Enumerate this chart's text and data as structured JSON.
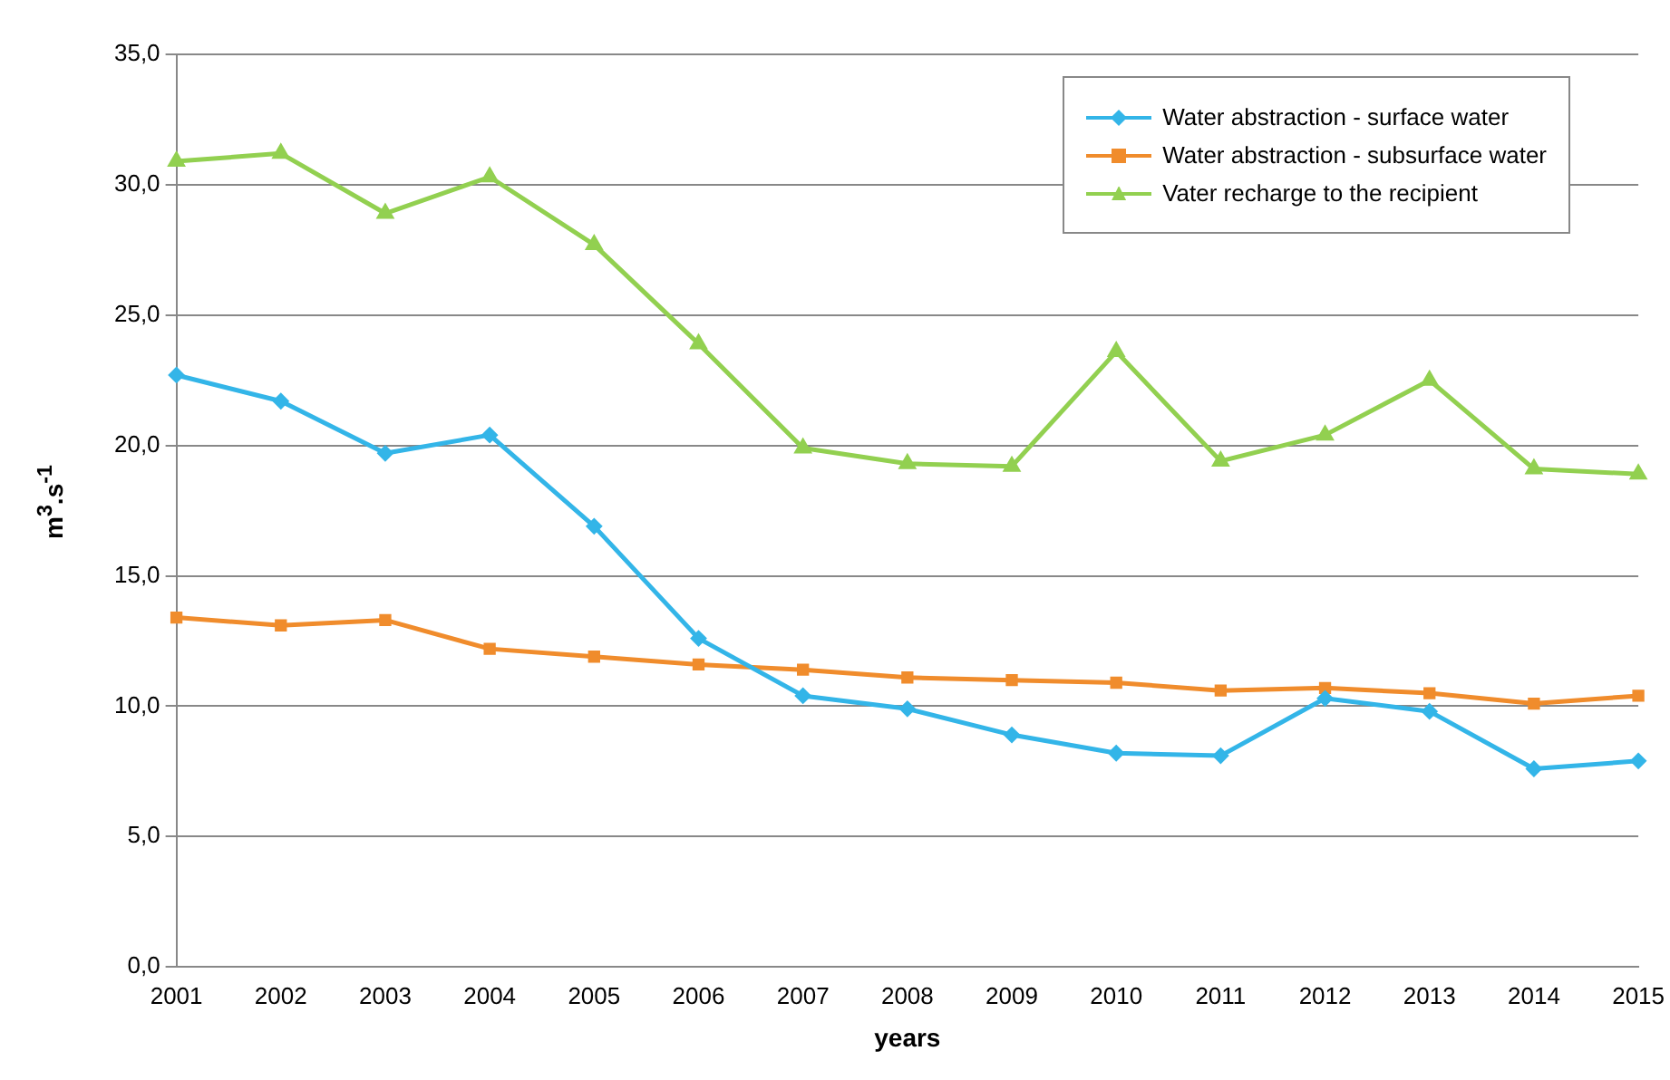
{
  "chart_data": {
    "type": "line",
    "xlabel": "years",
    "ylabel": "m$^{3}$.s$^{-1}$",
    "categories": [
      "2001",
      "2002",
      "2003",
      "2004",
      "2005",
      "2006",
      "2007",
      "2008",
      "2009",
      "2010",
      "2011",
      "2012",
      "2013",
      "2014",
      "2015"
    ],
    "series": [
      {
        "name": "Water abstraction - surface water",
        "color": "#33b5e8",
        "marker": "diamond",
        "values": [
          22.7,
          21.7,
          19.7,
          20.4,
          16.9,
          12.6,
          10.4,
          9.9,
          8.9,
          8.2,
          8.1,
          10.3,
          9.8,
          7.6,
          7.9
        ]
      },
      {
        "name": "Water abstraction - subsurface water",
        "color": "#f08c2c",
        "marker": "square",
        "values": [
          13.4,
          13.1,
          13.3,
          12.2,
          11.9,
          11.6,
          11.4,
          11.1,
          11.0,
          10.9,
          10.6,
          10.7,
          10.5,
          10.1,
          10.4
        ]
      },
      {
        "name": "Vater recharge to the recipient",
        "color": "#92d050",
        "marker": "triangle",
        "values": [
          30.9,
          31.2,
          28.9,
          30.3,
          27.7,
          23.9,
          19.9,
          19.3,
          19.2,
          23.6,
          19.4,
          20.4,
          22.5,
          19.1,
          18.9
        ]
      }
    ],
    "ylim": [
      0,
      35
    ],
    "yticks": [
      {
        "value": 0,
        "label": "0,0"
      },
      {
        "value": 5,
        "label": "5,0"
      },
      {
        "value": 10,
        "label": "10,0"
      },
      {
        "value": 15,
        "label": "15,0"
      },
      {
        "value": 20,
        "label": "20,0"
      },
      {
        "value": 25,
        "label": "25,0"
      },
      {
        "value": 30,
        "label": "30,0"
      },
      {
        "value": 35,
        "label": "35,0"
      }
    ],
    "grid": "y",
    "legend": "top right",
    "line_style": "solid"
  }
}
